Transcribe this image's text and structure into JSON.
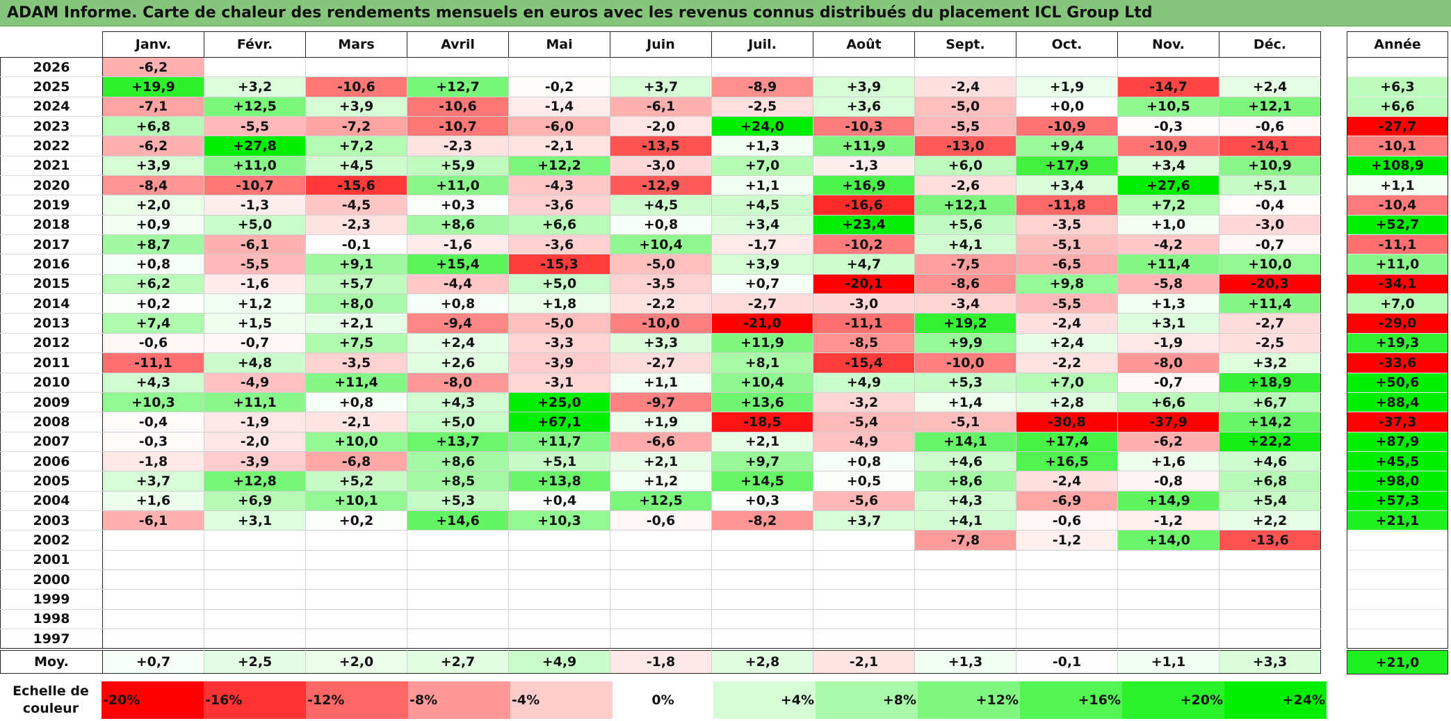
{
  "title": "ADAM Informe. Carte de chaleur des rendements mensuels en euros avec les revenus connus distribués du placement ICL Group Ltd",
  "colors": {
    "title_bg": "#86c67c",
    "negative_max": "#ff0000",
    "positive_max": "#00ee00",
    "neutral": "#ffffff"
  },
  "chart_data": {
    "type": "heatmap",
    "title": "ADAM Informe. Carte de chaleur des rendements mensuels en euros avec les revenus connus distribués du placement ICL Group Ltd",
    "months": [
      "Janv.",
      "Févr.",
      "Mars",
      "Avril",
      "Mai",
      "Juin",
      "Juil.",
      "Août",
      "Sept.",
      "Oct.",
      "Nov.",
      "Déc."
    ],
    "year_header": "Année",
    "rows": [
      {
        "year": "2026",
        "values": [
          "-6,2",
          "",
          "",
          "",
          "",
          "",
          "",
          "",
          "",
          "",
          "",
          ""
        ],
        "annual": ""
      },
      {
        "year": "2025",
        "values": [
          "+19,9",
          "+3,2",
          "-10,6",
          "+12,7",
          "-0,2",
          "+3,7",
          "-8,9",
          "+3,9",
          "-2,4",
          "+1,9",
          "-14,7",
          "+2,4"
        ],
        "annual": "+6,3"
      },
      {
        "year": "2024",
        "values": [
          "-7,1",
          "+12,5",
          "+3,9",
          "-10,6",
          "-1,4",
          "-6,1",
          "-2,5",
          "+3,6",
          "-5,0",
          "+0,0",
          "+10,5",
          "+12,1"
        ],
        "annual": "+6,6"
      },
      {
        "year": "2023",
        "values": [
          "+6,8",
          "-5,5",
          "-7,2",
          "-10,7",
          "-6,0",
          "-2,0",
          "+24,0",
          "-10,3",
          "-5,5",
          "-10,9",
          "-0,3",
          "-0,6"
        ],
        "annual": "-27,7"
      },
      {
        "year": "2022",
        "values": [
          "-6,2",
          "+27,8",
          "+7,2",
          "-2,3",
          "-2,1",
          "-13,5",
          "+1,3",
          "+11,9",
          "-13,0",
          "+9,4",
          "-10,9",
          "-14,1"
        ],
        "annual": "-10,1"
      },
      {
        "year": "2021",
        "values": [
          "+3,9",
          "+11,0",
          "+4,5",
          "+5,9",
          "+12,2",
          "-3,0",
          "+7,0",
          "-1,3",
          "+6,0",
          "+17,9",
          "+3,4",
          "+10,9"
        ],
        "annual": "+108,9"
      },
      {
        "year": "2020",
        "values": [
          "-8,4",
          "-10,7",
          "-15,6",
          "+11,0",
          "-4,3",
          "-12,9",
          "+1,1",
          "+16,9",
          "-2,6",
          "+3,4",
          "+27,6",
          "+5,1"
        ],
        "annual": "+1,1"
      },
      {
        "year": "2019",
        "values": [
          "+2,0",
          "-1,3",
          "-4,5",
          "+0,3",
          "-3,6",
          "+4,5",
          "+4,5",
          "-16,6",
          "+12,1",
          "-11,8",
          "+7,2",
          "-0,4"
        ],
        "annual": "-10,4"
      },
      {
        "year": "2018",
        "values": [
          "+0,9",
          "+5,0",
          "-2,3",
          "+8,6",
          "+6,6",
          "+0,8",
          "+3,4",
          "+23,4",
          "+5,6",
          "-3,5",
          "+1,0",
          "-3,0"
        ],
        "annual": "+52,7"
      },
      {
        "year": "2017",
        "values": [
          "+8,7",
          "-6,1",
          "-0,1",
          "-1,6",
          "-3,6",
          "+10,4",
          "-1,7",
          "-10,2",
          "+4,1",
          "-5,1",
          "-4,2",
          "-0,7"
        ],
        "annual": "-11,1"
      },
      {
        "year": "2016",
        "values": [
          "+0,8",
          "-5,5",
          "+9,1",
          "+15,4",
          "-15,3",
          "-5,0",
          "+3,9",
          "+4,7",
          "-7,5",
          "-6,5",
          "+11,4",
          "+10,0"
        ],
        "annual": "+11,0"
      },
      {
        "year": "2015",
        "values": [
          "+6,2",
          "-1,6",
          "+5,7",
          "-4,4",
          "+5,0",
          "-3,5",
          "+0,7",
          "-20,1",
          "-8,6",
          "+9,8",
          "-5,8",
          "-20,3"
        ],
        "annual": "-34,1"
      },
      {
        "year": "2014",
        "values": [
          "+0,2",
          "+1,2",
          "+8,0",
          "+0,8",
          "+1,8",
          "-2,2",
          "-2,7",
          "-3,0",
          "-3,4",
          "-5,5",
          "+1,3",
          "+11,4"
        ],
        "annual": "+7,0"
      },
      {
        "year": "2013",
        "values": [
          "+7,4",
          "+1,5",
          "+2,1",
          "-9,4",
          "-5,0",
          "-10,0",
          "-21,0",
          "-11,1",
          "+19,2",
          "-2,4",
          "+3,1",
          "-2,7"
        ],
        "annual": "-29,0"
      },
      {
        "year": "2012",
        "values": [
          "-0,6",
          "-0,7",
          "+7,5",
          "+2,4",
          "-3,3",
          "+3,3",
          "+11,9",
          "-8,5",
          "+9,9",
          "+2,4",
          "-1,9",
          "-2,5"
        ],
        "annual": "+19,3"
      },
      {
        "year": "2011",
        "values": [
          "-11,1",
          "+4,8",
          "-3,5",
          "+2,6",
          "-3,9",
          "-2,7",
          "+8,1",
          "-15,4",
          "-10,0",
          "-2,2",
          "-8,0",
          "+3,2"
        ],
        "annual": "-33,6"
      },
      {
        "year": "2010",
        "values": [
          "+4,3",
          "-4,9",
          "+11,4",
          "-8,0",
          "-3,1",
          "+1,1",
          "+10,4",
          "+4,9",
          "+5,3",
          "+7,0",
          "-0,7",
          "+18,9"
        ],
        "annual": "+50,6"
      },
      {
        "year": "2009",
        "values": [
          "+10,3",
          "+11,1",
          "+0,8",
          "+4,3",
          "+25,0",
          "-9,7",
          "+13,6",
          "-3,2",
          "+1,4",
          "+2,8",
          "+6,6",
          "+6,7"
        ],
        "annual": "+88,4"
      },
      {
        "year": "2008",
        "values": [
          "-0,4",
          "-1,9",
          "-2,1",
          "+5,0",
          "+67,1",
          "+1,9",
          "-18,5",
          "-5,4",
          "-5,1",
          "-30,8",
          "-37,9",
          "+14,2"
        ],
        "annual": "-37,3"
      },
      {
        "year": "2007",
        "values": [
          "-0,3",
          "-2,0",
          "+10,0",
          "+13,7",
          "+11,7",
          "-6,6",
          "+2,1",
          "-4,9",
          "+14,1",
          "+17,4",
          "-6,2",
          "+22,2"
        ],
        "annual": "+87,9"
      },
      {
        "year": "2006",
        "values": [
          "-1,8",
          "-3,9",
          "-6,8",
          "+8,6",
          "+5,1",
          "+2,1",
          "+9,7",
          "+0,8",
          "+4,6",
          "+16,5",
          "+1,6",
          "+4,6"
        ],
        "annual": "+45,5"
      },
      {
        "year": "2005",
        "values": [
          "+3,7",
          "+12,8",
          "+5,2",
          "+8,5",
          "+13,8",
          "+1,2",
          "+14,5",
          "+0,5",
          "+8,6",
          "-2,4",
          "-0,8",
          "+6,8"
        ],
        "annual": "+98,0"
      },
      {
        "year": "2004",
        "values": [
          "+1,6",
          "+6,9",
          "+10,1",
          "+5,3",
          "+0,4",
          "+12,5",
          "+0,3",
          "-5,6",
          "+4,3",
          "-6,9",
          "+14,9",
          "+5,4"
        ],
        "annual": "+57,3"
      },
      {
        "year": "2003",
        "values": [
          "-6,1",
          "+3,1",
          "+0,2",
          "+14,6",
          "+10,3",
          "-0,6",
          "-8,2",
          "+3,7",
          "+4,1",
          "-0,6",
          "-1,2",
          "+2,2"
        ],
        "annual": "+21,1"
      },
      {
        "year": "2002",
        "values": [
          "",
          "",
          "",
          "",
          "",
          "",
          "",
          "",
          "-7,8",
          "-1,2",
          "+14,0",
          "-13,6"
        ],
        "annual": ""
      },
      {
        "year": "2001",
        "values": [
          "",
          "",
          "",
          "",
          "",
          "",
          "",
          "",
          "",
          "",
          "",
          ""
        ],
        "annual": ""
      },
      {
        "year": "2000",
        "values": [
          "",
          "",
          "",
          "",
          "",
          "",
          "",
          "",
          "",
          "",
          "",
          ""
        ],
        "annual": ""
      },
      {
        "year": "1999",
        "values": [
          "",
          "",
          "",
          "",
          "",
          "",
          "",
          "",
          "",
          "",
          "",
          ""
        ],
        "annual": ""
      },
      {
        "year": "1998",
        "values": [
          "",
          "",
          "",
          "",
          "",
          "",
          "",
          "",
          "",
          "",
          "",
          ""
        ],
        "annual": ""
      },
      {
        "year": "1997",
        "values": [
          "",
          "",
          "",
          "",
          "",
          "",
          "",
          "",
          "",
          "",
          "",
          ""
        ],
        "annual": ""
      }
    ],
    "average_label": "Moy.",
    "averages": [
      "+0,7",
      "+2,5",
      "+2,0",
      "+2,7",
      "+4,9",
      "-1,8",
      "+2,8",
      "-2,1",
      "+1,3",
      "-0,1",
      "+1,1",
      "+3,3"
    ],
    "annual_average": "+21,0",
    "scale_label": "Echelle de couleur",
    "scale": [
      "-20%",
      "-16%",
      "-12%",
      "-8%",
      "-4%",
      "0%",
      "+4%",
      "+8%",
      "+12%",
      "+16%",
      "+20%",
      "+24%"
    ],
    "scale_values": [
      -20,
      -16,
      -12,
      -8,
      -4,
      0,
      4,
      8,
      12,
      16,
      20,
      24
    ]
  }
}
